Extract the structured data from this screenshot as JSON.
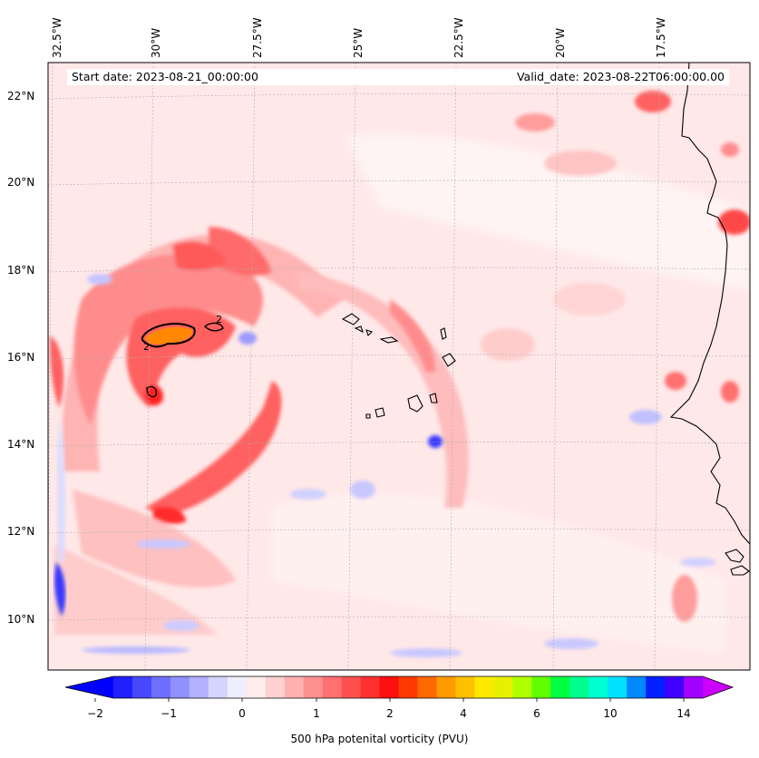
{
  "header": {
    "start_date": "Start date: 2023-08-21_00:00:00",
    "valid_date": "Valid_date: 2023-08-22T06:00:00.00"
  },
  "axes": {
    "lon_labels": [
      "32.5°W",
      "30°W",
      "27.5°W",
      "25°W",
      "22.5°W",
      "20°W",
      "17.5°W"
    ],
    "lat_labels": [
      "22°N",
      "20°N",
      "18°N",
      "16°N",
      "14°N",
      "12°N",
      "10°N"
    ]
  },
  "colorbar": {
    "ticks": [
      "−2",
      "−1",
      "0",
      "1",
      "2",
      "4",
      "6",
      "10",
      "14"
    ],
    "title": "500 hPa potenital vorticity (PVU)",
    "colors": [
      "#2020ff",
      "#4848ff",
      "#6f6fff",
      "#9090ff",
      "#b2b2ff",
      "#d4d4ff",
      "#eeeeff",
      "#ffecec",
      "#ffd0d0",
      "#ffb0b0",
      "#ff9090",
      "#ff7070",
      "#ff5050",
      "#ff3030",
      "#ff1010",
      "#ff3a00",
      "#ff6a00",
      "#ff9a00",
      "#ffc000",
      "#ffe800",
      "#e8f000",
      "#b0ff00",
      "#60ff00",
      "#00ff40",
      "#00ff90",
      "#00ffd0",
      "#00e0ff",
      "#0088ff",
      "#0020ff",
      "#4000ff",
      "#a000ff"
    ],
    "extend_low": "#0000ff",
    "extend_high": "#cc00ff"
  },
  "map": {
    "background": "#ffe8e8",
    "contour_label": "2"
  }
}
